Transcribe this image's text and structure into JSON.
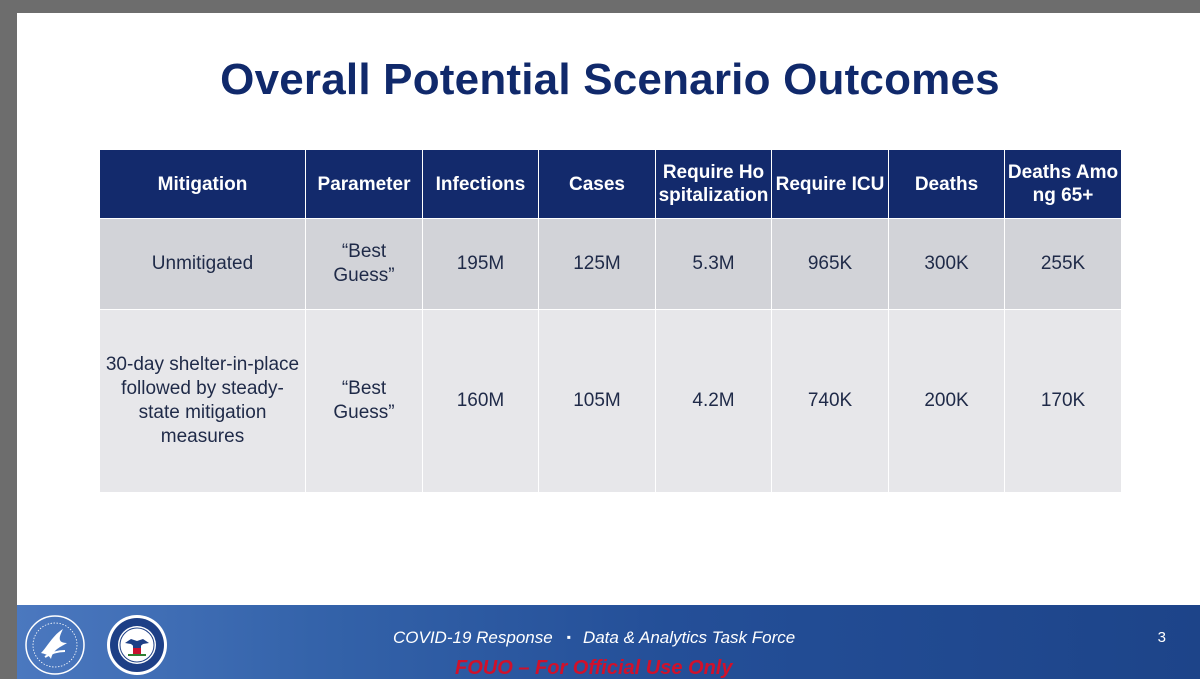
{
  "slide": {
    "title": "Overall Potential Scenario Outcomes",
    "table": {
      "headers": [
        "Mitigation",
        "Parameter",
        "Infections",
        "Cases",
        "Require Hospitalization",
        "Require ICU",
        "Deaths",
        "Deaths Among 65+"
      ],
      "rows": [
        {
          "mitigation": "Unmitigated",
          "parameter": "“Best Guess”",
          "infections": "195M",
          "cases": "125M",
          "hospitalization": "5.3M",
          "icu": "965K",
          "deaths": "300K",
          "deaths_65": "255K"
        },
        {
          "mitigation": "30-day shelter-in-place followed by steady-state mitigation measures",
          "parameter": "“Best Guess”",
          "infections": "160M",
          "cases": "105M",
          "hospitalization": "4.2M",
          "icu": "740K",
          "deaths": "200K",
          "deaths_65": "170K"
        }
      ]
    },
    "footer": {
      "response": "COVID-19 Response",
      "separator": "▪",
      "task_force": "Data & Analytics Task Force",
      "classification": "FOUO – For Official Use Only",
      "page_number": "3"
    }
  },
  "colors": {
    "title": "#10296b",
    "header_bg": "#132a6c",
    "row_1_bg": "#d2d3d8",
    "row_2_bg": "#e7e7ea",
    "footer_bg": "#244f98",
    "classification": "#d0112b"
  },
  "icons": {
    "hhs_logo": "hhs-eagle-seal-icon",
    "dhs_logo": "dhs-seal-icon"
  }
}
